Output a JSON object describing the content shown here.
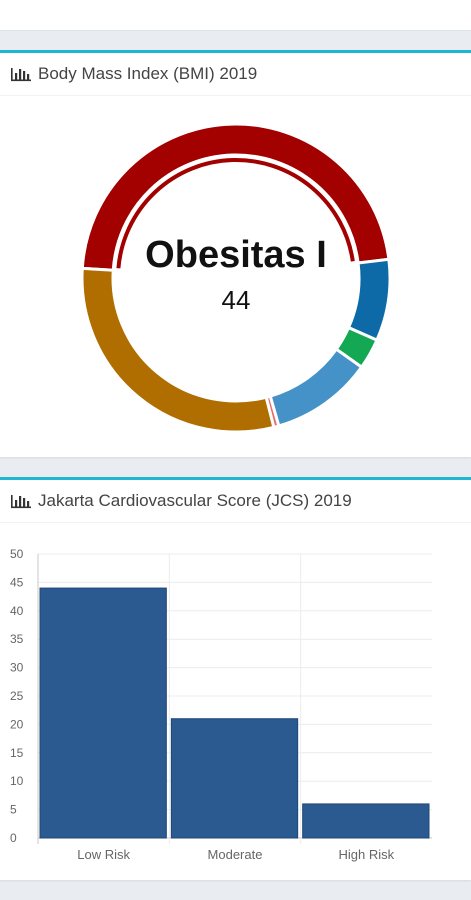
{
  "bmi_card": {
    "title": "Body Mass Index (BMI) 2019",
    "center_label": "Obesitas I",
    "center_value": "44"
  },
  "jcs_card": {
    "title": "Jakarta Cardiovascular Score (JCS) 2019"
  },
  "chart_data": [
    {
      "type": "pie",
      "title": "",
      "segments": [
        {
          "value": 44,
          "color": "#a30000"
        },
        {
          "value": 8,
          "color": "#0e6aa6"
        },
        {
          "value": 3,
          "color": "#14a855"
        },
        {
          "value": 10,
          "color": "#4592c8"
        },
        {
          "value": 0.5,
          "color": "#e86b6b"
        },
        {
          "value": 28,
          "color": "#b06e00"
        }
      ]
    },
    {
      "type": "bar",
      "title": "",
      "categories": [
        "Low Risk",
        "Moderate",
        "High Risk"
      ],
      "values": [
        44,
        21,
        6
      ],
      "ylim": [
        0,
        50
      ],
      "yticks": [
        0,
        5,
        10,
        15,
        20,
        25,
        30,
        35,
        40,
        45,
        50
      ],
      "color": "#2b5a91",
      "grid": true
    }
  ]
}
